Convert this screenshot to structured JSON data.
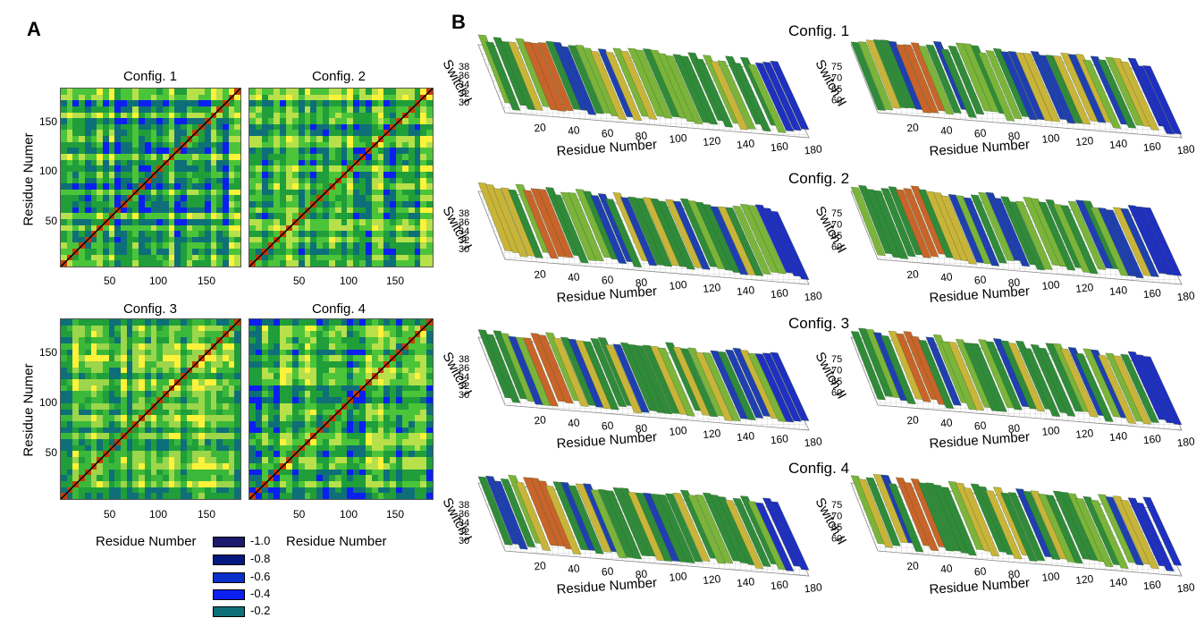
{
  "panel_a": {
    "letter": "A",
    "maps": [
      {
        "title": "Config. 1"
      },
      {
        "title": "Config. 2"
      },
      {
        "title": "Config. 3"
      },
      {
        "title": "Config. 4"
      }
    ],
    "ylabel": "Residue Numer",
    "xlabel": "Residue Number",
    "x_ticks": [
      "50",
      "100",
      "150"
    ],
    "y_ticks": [
      "150",
      "100",
      "50"
    ],
    "legend": [
      {
        "label": "-1.0",
        "color": "#1b1a6e"
      },
      {
        "label": "-0.8",
        "color": "#02197f"
      },
      {
        "label": "-0.6",
        "color": "#0a2fc9"
      },
      {
        "label": "-0.4",
        "color": "#0a1ff0"
      },
      {
        "label": "-0.2",
        "color": "#0e6f78"
      }
    ]
  },
  "panel_b": {
    "letter": "B",
    "config_labels": [
      "Config. 1",
      "Config. 2",
      "Config. 3",
      "Config. 4"
    ],
    "xlabel": "Residue Number",
    "switch1": {
      "label": "Switch I",
      "ticks": [
        "38",
        "36",
        "34",
        "32",
        "30"
      ]
    },
    "switch2": {
      "label": "Switch II",
      "ticks": [
        "75",
        "70",
        "65",
        "60"
      ]
    },
    "x_ticks": [
      "20",
      "40",
      "60",
      "80",
      "100",
      "120",
      "140",
      "160",
      "180"
    ]
  },
  "chart_data": [
    {
      "type": "heatmap",
      "title": "Config. 1",
      "xlabel": "",
      "ylabel": "Residue Numer",
      "xlim": [
        1,
        185
      ],
      "ylim": [
        1,
        185
      ]
    },
    {
      "type": "heatmap",
      "title": "Config. 2",
      "xlabel": "",
      "ylabel": "",
      "xlim": [
        1,
        185
      ],
      "ylim": [
        1,
        185
      ]
    },
    {
      "type": "heatmap",
      "title": "Config. 3",
      "xlabel": "Residue Number",
      "ylabel": "Residue Numer",
      "xlim": [
        1,
        185
      ],
      "ylim": [
        1,
        185
      ]
    },
    {
      "type": "heatmap",
      "title": "Config. 4",
      "xlabel": "Residue Number",
      "ylabel": "",
      "xlim": [
        1,
        185
      ],
      "ylim": [
        1,
        185
      ]
    }
  ]
}
